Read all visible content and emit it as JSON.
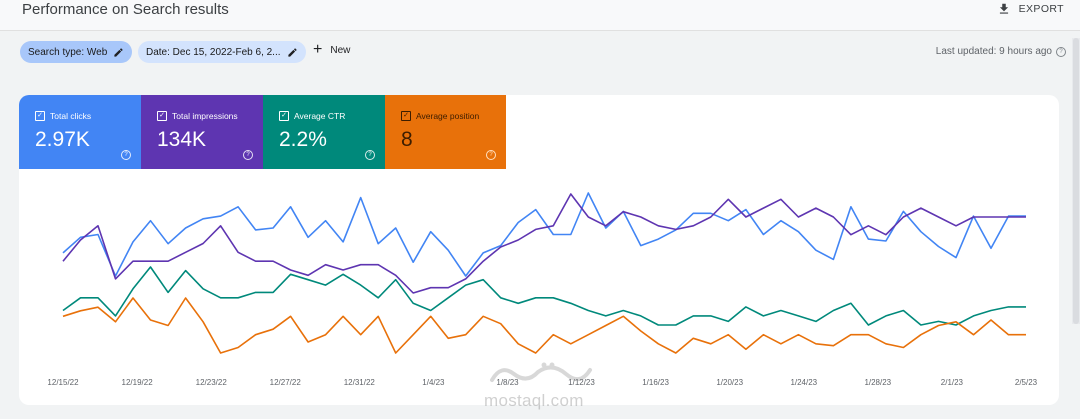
{
  "header": {
    "title": "Performance on Search results",
    "export_label": "EXPORT"
  },
  "filters": {
    "search_type": "Search type: Web",
    "date": "Date: Dec 15, 2022-Feb 6, 2...",
    "new_label": "New",
    "last_updated": "Last updated: 9 hours ago"
  },
  "metrics": [
    {
      "label": "Total clicks",
      "value": "2.97K",
      "color": "#4285f4"
    },
    {
      "label": "Total impressions",
      "value": "134K",
      "color": "#5e35b1"
    },
    {
      "label": "Average CTR",
      "value": "2.2%",
      "color": "#00897b"
    },
    {
      "label": "Average position",
      "value": "8",
      "color": "#e8710a"
    }
  ],
  "chart_data": {
    "type": "line",
    "x_ticks": [
      "12/15/22",
      "12/19/22",
      "12/23/22",
      "12/27/22",
      "12/31/22",
      "1/4/23",
      "1/8/23",
      "1/12/23",
      "1/16/23",
      "1/20/23",
      "1/24/23",
      "1/28/23",
      "2/1/23",
      "2/5/23"
    ],
    "grid": false,
    "series": [
      {
        "name": "Total clicks",
        "color": "#4285f4",
        "values": [
          0.35,
          0.52,
          0.55,
          0.1,
          0.47,
          0.7,
          0.45,
          0.62,
          0.72,
          0.75,
          0.85,
          0.6,
          0.62,
          0.85,
          0.52,
          0.7,
          0.47,
          0.95,
          0.45,
          0.62,
          0.25,
          0.58,
          0.38,
          0.1,
          0.35,
          0.43,
          0.68,
          0.82,
          0.55,
          0.55,
          1.0,
          0.62,
          0.8,
          0.43,
          0.5,
          0.6,
          0.78,
          0.78,
          0.7,
          0.82,
          0.55,
          0.7,
          0.58,
          0.38,
          0.28,
          0.85,
          0.5,
          0.48,
          0.8,
          0.58,
          0.42,
          0.3,
          0.75,
          0.4,
          0.75,
          0.75
        ]
      },
      {
        "name": "Total impressions",
        "color": "#5e35b1",
        "values": [
          0.6,
          0.72,
          0.8,
          0.5,
          0.6,
          0.6,
          0.6,
          0.65,
          0.7,
          0.8,
          0.65,
          0.6,
          0.6,
          0.55,
          0.52,
          0.58,
          0.55,
          0.58,
          0.58,
          0.52,
          0.42,
          0.45,
          0.45,
          0.5,
          0.6,
          0.68,
          0.72,
          0.78,
          0.8,
          0.98,
          0.85,
          0.8,
          0.88,
          0.85,
          0.8,
          0.78,
          0.8,
          0.85,
          0.95,
          0.85,
          0.9,
          0.95,
          0.85,
          0.9,
          0.85,
          0.75,
          0.8,
          0.75,
          0.85,
          0.9,
          0.85,
          0.8,
          0.85,
          0.85,
          0.85,
          0.85
        ]
      },
      {
        "name": "Average CTR",
        "color": "#00897b",
        "values": [
          0.38,
          0.45,
          0.45,
          0.35,
          0.5,
          0.62,
          0.48,
          0.6,
          0.5,
          0.45,
          0.45,
          0.48,
          0.48,
          0.58,
          0.55,
          0.52,
          0.58,
          0.52,
          0.45,
          0.55,
          0.42,
          0.38,
          0.45,
          0.52,
          0.55,
          0.45,
          0.42,
          0.45,
          0.45,
          0.42,
          0.38,
          0.35,
          0.38,
          0.35,
          0.3,
          0.3,
          0.35,
          0.35,
          0.32,
          0.4,
          0.35,
          0.38,
          0.35,
          0.32,
          0.38,
          0.42,
          0.3,
          0.35,
          0.38,
          0.3,
          0.32,
          0.3,
          0.35,
          0.38,
          0.4,
          0.4
        ]
      },
      {
        "name": "Average position",
        "color": "#e8710a",
        "values": [
          9.0,
          9.3,
          9.5,
          8.7,
          10.0,
          8.8,
          8.5,
          10.0,
          8.7,
          7.0,
          7.3,
          8.0,
          8.3,
          9.0,
          7.6,
          8.0,
          9.0,
          8.0,
          9.0,
          7.0,
          8.0,
          9.0,
          7.8,
          8.0,
          9.0,
          8.6,
          7.5,
          7.0,
          8.0,
          7.5,
          8.0,
          8.5,
          9.0,
          8.2,
          7.5,
          7.0,
          7.8,
          7.5,
          8.0,
          7.2,
          8.0,
          7.5,
          8.0,
          7.5,
          7.4,
          8.0,
          8.0,
          7.5,
          7.3,
          8.0,
          8.5,
          8.7,
          8.0,
          8.8,
          8.0,
          8.0
        ]
      }
    ]
  },
  "watermark": {
    "logo": "مستقل",
    "text": "mostaql.com"
  }
}
